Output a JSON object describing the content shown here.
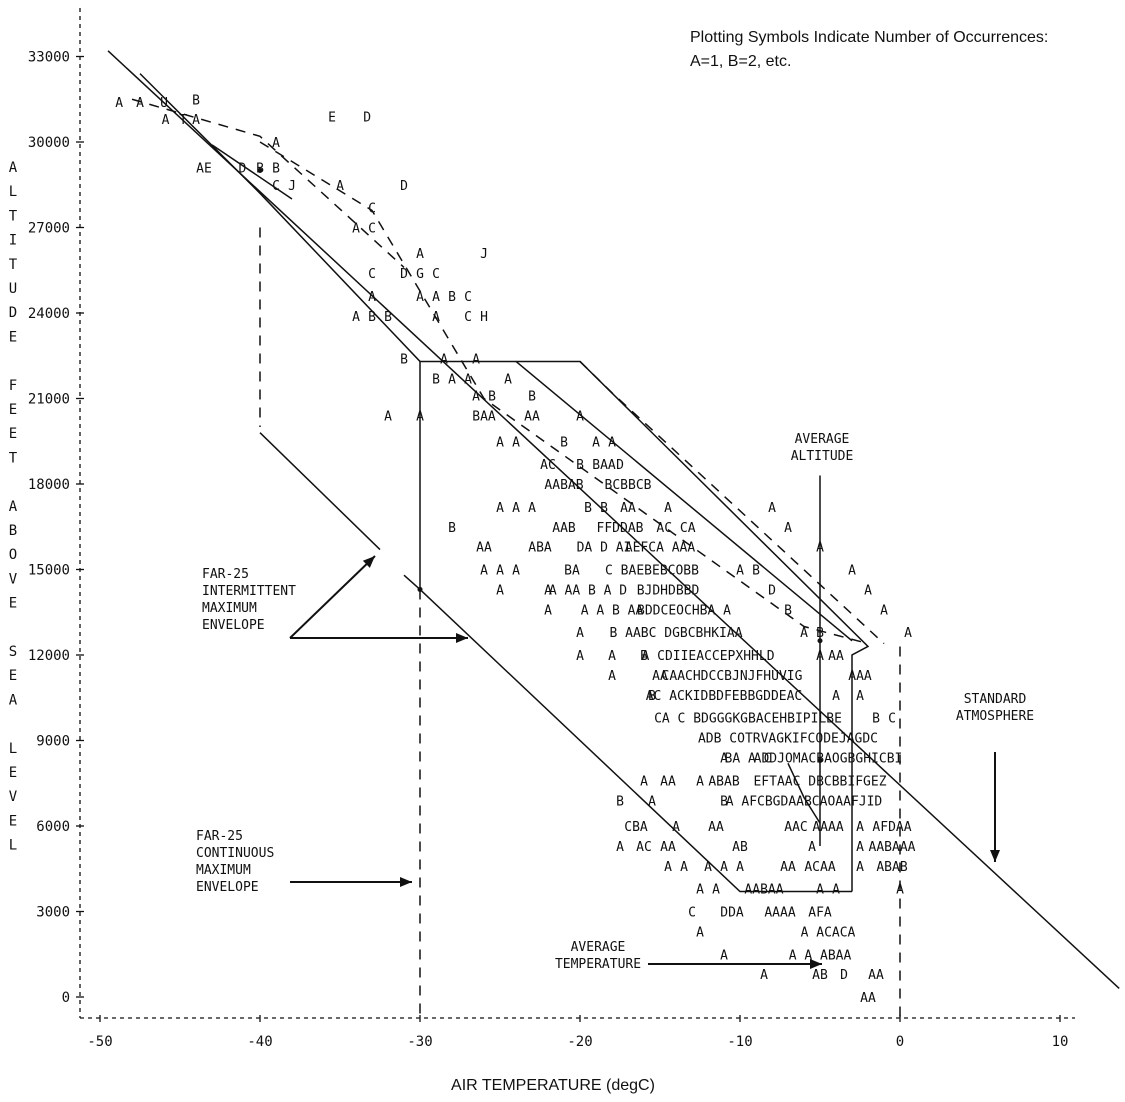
{
  "chart_data": {
    "type": "scatter",
    "title": "",
    "legend_note": [
      "Plotting Symbols Indicate Number of Occurrences:",
      "A=1, B=2, etc."
    ],
    "xlabel": "AIR TEMPERATURE (degC)",
    "ylabel_letters": [
      "A",
      "L",
      "T",
      "I",
      "T",
      "U",
      "D",
      "E",
      "",
      "F",
      "E",
      "E",
      "T",
      "",
      "A",
      "B",
      "O",
      "V",
      "E",
      "",
      "S",
      "E",
      "A",
      "",
      "L",
      "E",
      "V",
      "E",
      "L"
    ],
    "xlim": [
      -50,
      12
    ],
    "ylim": [
      -500,
      34000
    ],
    "x_ticks": [
      -50,
      -40,
      -30,
      -20,
      -10,
      0,
      10
    ],
    "x_tick_labels": [
      "-50",
      "-40",
      "-30",
      "-20",
      "-10",
      "0",
      "10"
    ],
    "y_ticks": [
      0,
      3000,
      6000,
      9000,
      12000,
      15000,
      18000,
      21000,
      24000,
      27000,
      30000,
      33000
    ],
    "y_tick_labels": [
      "0",
      "3000",
      "6000",
      "9000",
      "12000",
      "15000",
      "18000",
      "21000",
      "24000",
      "27000",
      "30000",
      "33000"
    ],
    "grid": false,
    "points": [
      {
        "x": -48.8,
        "y": 31400,
        "s": "A"
      },
      {
        "x": -47.5,
        "y": 31400,
        "s": "A"
      },
      {
        "x": -46.0,
        "y": 31400,
        "s": "U"
      },
      {
        "x": -44.0,
        "y": 31500,
        "s": "B"
      },
      {
        "x": -45.9,
        "y": 30800,
        "s": "A"
      },
      {
        "x": -44.8,
        "y": 30800,
        "s": "T"
      },
      {
        "x": -44.0,
        "y": 30800,
        "s": "A"
      },
      {
        "x": -35.5,
        "y": 30900,
        "s": "E"
      },
      {
        "x": -33.3,
        "y": 30900,
        "s": "D"
      },
      {
        "x": -39.0,
        "y": 30000,
        "s": "A"
      },
      {
        "x": -43.5,
        "y": 29100,
        "s": "AE"
      },
      {
        "x": -41.1,
        "y": 29100,
        "s": "D"
      },
      {
        "x": -40.0,
        "y": 29100,
        "s": "B"
      },
      {
        "x": -39.0,
        "y": 29100,
        "s": "B"
      },
      {
        "x": -39.0,
        "y": 28500,
        "s": "C"
      },
      {
        "x": -38.0,
        "y": 28500,
        "s": "J"
      },
      {
        "x": -35.0,
        "y": 28500,
        "s": "A"
      },
      {
        "x": -31.0,
        "y": 28500,
        "s": "D"
      },
      {
        "x": -33.0,
        "y": 27700,
        "s": "C"
      },
      {
        "x": -34.0,
        "y": 27000,
        "s": "A"
      },
      {
        "x": -33.0,
        "y": 27000,
        "s": "C"
      },
      {
        "x": -30.0,
        "y": 26100,
        "s": "A"
      },
      {
        "x": -26.0,
        "y": 26100,
        "s": "J"
      },
      {
        "x": -33.0,
        "y": 25400,
        "s": "C"
      },
      {
        "x": -31.0,
        "y": 25400,
        "s": "D"
      },
      {
        "x": -30.0,
        "y": 25400,
        "s": "G"
      },
      {
        "x": -29.0,
        "y": 25400,
        "s": "C"
      },
      {
        "x": -33.0,
        "y": 24600,
        "s": "A"
      },
      {
        "x": -30.0,
        "y": 24600,
        "s": "A"
      },
      {
        "x": -29.0,
        "y": 24600,
        "s": "A"
      },
      {
        "x": -28.0,
        "y": 24600,
        "s": "B"
      },
      {
        "x": -27.0,
        "y": 24600,
        "s": "C"
      },
      {
        "x": -34.0,
        "y": 23900,
        "s": "A"
      },
      {
        "x": -33.0,
        "y": 23900,
        "s": "B"
      },
      {
        "x": -32.0,
        "y": 23900,
        "s": "B"
      },
      {
        "x": -29.0,
        "y": 23900,
        "s": "A"
      },
      {
        "x": -27.0,
        "y": 23900,
        "s": "C"
      },
      {
        "x": -26.0,
        "y": 23900,
        "s": "H"
      },
      {
        "x": -31.0,
        "y": 22400,
        "s": "B"
      },
      {
        "x": -28.5,
        "y": 22400,
        "s": "A"
      },
      {
        "x": -26.5,
        "y": 22400,
        "s": "A"
      },
      {
        "x": -29.0,
        "y": 21700,
        "s": "B"
      },
      {
        "x": -28.0,
        "y": 21700,
        "s": "A"
      },
      {
        "x": -27.0,
        "y": 21700,
        "s": "A"
      },
      {
        "x": -24.5,
        "y": 21700,
        "s": "A"
      },
      {
        "x": -26.5,
        "y": 21100,
        "s": "A"
      },
      {
        "x": -25.5,
        "y": 21100,
        "s": "B"
      },
      {
        "x": -23.0,
        "y": 21100,
        "s": "B"
      },
      {
        "x": -32.0,
        "y": 20400,
        "s": "A"
      },
      {
        "x": -30.0,
        "y": 20400,
        "s": "A"
      },
      {
        "x": -26.0,
        "y": 20400,
        "s": "BAA"
      },
      {
        "x": -23.0,
        "y": 20400,
        "s": "AA"
      },
      {
        "x": -20.0,
        "y": 20400,
        "s": "A"
      },
      {
        "x": -25.0,
        "y": 19500,
        "s": "A"
      },
      {
        "x": -24.0,
        "y": 19500,
        "s": "A"
      },
      {
        "x": -21.0,
        "y": 19500,
        "s": "B"
      },
      {
        "x": -19.0,
        "y": 19500,
        "s": "A"
      },
      {
        "x": -18.0,
        "y": 19500,
        "s": "A"
      },
      {
        "x": -22.0,
        "y": 18700,
        "s": "AC"
      },
      {
        "x": -20.0,
        "y": 18700,
        "s": "B"
      },
      {
        "x": -18.5,
        "y": 18700,
        "s": "BAA"
      },
      {
        "x": -17.5,
        "y": 18700,
        "s": "D"
      },
      {
        "x": -21.0,
        "y": 18000,
        "s": "AABAB"
      },
      {
        "x": -17.0,
        "y": 18000,
        "s": "BCBBCB"
      },
      {
        "x": -25.0,
        "y": 17200,
        "s": "A"
      },
      {
        "x": -24.0,
        "y": 17200,
        "s": "A"
      },
      {
        "x": -23.0,
        "y": 17200,
        "s": "A"
      },
      {
        "x": -19.5,
        "y": 17200,
        "s": "B"
      },
      {
        "x": -18.5,
        "y": 17200,
        "s": "B"
      },
      {
        "x": -17.0,
        "y": 17200,
        "s": "AA"
      },
      {
        "x": -14.5,
        "y": 17200,
        "s": "A"
      },
      {
        "x": -8.0,
        "y": 17200,
        "s": "A"
      },
      {
        "x": -28.0,
        "y": 16500,
        "s": "B"
      },
      {
        "x": -21.0,
        "y": 16500,
        "s": "AAB"
      },
      {
        "x": -17.5,
        "y": 16500,
        "s": "FFDDAB"
      },
      {
        "x": -14.0,
        "y": 16500,
        "s": "AC CA"
      },
      {
        "x": -7.0,
        "y": 16500,
        "s": "A"
      },
      {
        "x": -26.0,
        "y": 15800,
        "s": "AA"
      },
      {
        "x": -22.5,
        "y": 15800,
        "s": "ABA"
      },
      {
        "x": -18.5,
        "y": 15800,
        "s": "DA D AI"
      },
      {
        "x": -15.0,
        "y": 15800,
        "s": "AEFCA AAA"
      },
      {
        "x": -5.0,
        "y": 15800,
        "s": "A"
      },
      {
        "x": -26.0,
        "y": 15000,
        "s": "A"
      },
      {
        "x": -25.0,
        "y": 15000,
        "s": "A"
      },
      {
        "x": -24.0,
        "y": 15000,
        "s": "A"
      },
      {
        "x": -20.5,
        "y": 15000,
        "s": "BA"
      },
      {
        "x": -15.5,
        "y": 15000,
        "s": "C BAEBEBCOBB"
      },
      {
        "x": -10.0,
        "y": 15000,
        "s": "A"
      },
      {
        "x": -9.0,
        "y": 15000,
        "s": "B"
      },
      {
        "x": -3.0,
        "y": 15000,
        "s": "A"
      },
      {
        "x": -25.0,
        "y": 14300,
        "s": "A"
      },
      {
        "x": -22.0,
        "y": 14300,
        "s": "A"
      },
      {
        "x": -19.5,
        "y": 14300,
        "s": "A AA B A D"
      },
      {
        "x": -14.5,
        "y": 14300,
        "s": "BJDHDBBD"
      },
      {
        "x": -8.0,
        "y": 14300,
        "s": "D"
      },
      {
        "x": -2.0,
        "y": 14300,
        "s": "A"
      },
      {
        "x": -22.0,
        "y": 13600,
        "s": "A"
      },
      {
        "x": -18.0,
        "y": 13600,
        "s": "A A B AA"
      },
      {
        "x": -13.5,
        "y": 13600,
        "s": "BDDCEOCHBA A"
      },
      {
        "x": -7.0,
        "y": 13600,
        "s": "B"
      },
      {
        "x": -1.0,
        "y": 13600,
        "s": "A"
      },
      {
        "x": -20.0,
        "y": 12800,
        "s": "A"
      },
      {
        "x": -14.0,
        "y": 12800,
        "s": "B AABC DGBCBHKIAA"
      },
      {
        "x": -6.0,
        "y": 12800,
        "s": "A"
      },
      {
        "x": -5.0,
        "y": 12800,
        "s": "B"
      },
      {
        "x": 0.5,
        "y": 12800,
        "s": "A"
      },
      {
        "x": -20.0,
        "y": 12000,
        "s": "A"
      },
      {
        "x": -18.0,
        "y": 12000,
        "s": "A"
      },
      {
        "x": -16.0,
        "y": 12000,
        "s": "B"
      },
      {
        "x": -12.0,
        "y": 12000,
        "s": "A CDIIEACCEPXHHLD"
      },
      {
        "x": -5.0,
        "y": 12000,
        "s": "A"
      },
      {
        "x": -4.0,
        "y": 12000,
        "s": "AA"
      },
      {
        "x": -18.0,
        "y": 11300,
        "s": "A"
      },
      {
        "x": -15.0,
        "y": 11300,
        "s": "AA"
      },
      {
        "x": -10.5,
        "y": 11300,
        "s": "CAACHDCCBJNJFHUVIG"
      },
      {
        "x": -2.5,
        "y": 11300,
        "s": "AAA"
      },
      {
        "x": -15.5,
        "y": 10600,
        "s": "B"
      },
      {
        "x": -11.0,
        "y": 10600,
        "s": "AC ACKIDBDFEBBGDDEAC"
      },
      {
        "x": -4.0,
        "y": 10600,
        "s": "A"
      },
      {
        "x": -2.5,
        "y": 10600,
        "s": "A"
      },
      {
        "x": -9.5,
        "y": 9800,
        "s": "CA C BDGGGKGBACEHBIPILBE"
      },
      {
        "x": -1.5,
        "y": 9800,
        "s": "B"
      },
      {
        "x": -0.5,
        "y": 9800,
        "s": "C"
      },
      {
        "x": -7.0,
        "y": 9100,
        "s": "ADB COTRVAGKIFCODEJAGDC"
      },
      {
        "x": -11.0,
        "y": 8400,
        "s": "A"
      },
      {
        "x": -9.5,
        "y": 8400,
        "s": "BA A C"
      },
      {
        "x": -4.5,
        "y": 8400,
        "s": "ADDJOMACBAOGBGHICBI"
      },
      {
        "x": -16.0,
        "y": 7600,
        "s": "A"
      },
      {
        "x": -14.5,
        "y": 7600,
        "s": "AA"
      },
      {
        "x": -12.5,
        "y": 7600,
        "s": "A"
      },
      {
        "x": -11.0,
        "y": 7600,
        "s": "ABAB"
      },
      {
        "x": -5.0,
        "y": 7600,
        "s": "EFTAAC DBCBBIFGEZ"
      },
      {
        "x": -17.5,
        "y": 6900,
        "s": "B"
      },
      {
        "x": -15.5,
        "y": 6900,
        "s": "A"
      },
      {
        "x": -11.0,
        "y": 6900,
        "s": "B"
      },
      {
        "x": -6.0,
        "y": 6900,
        "s": "A AFCBGDAABCAOAAFJID"
      },
      {
        "x": -16.5,
        "y": 6000,
        "s": "CBA"
      },
      {
        "x": -14.0,
        "y": 6000,
        "s": "A"
      },
      {
        "x": -11.5,
        "y": 6000,
        "s": "AA"
      },
      {
        "x": -6.5,
        "y": 6000,
        "s": "AAC"
      },
      {
        "x": -4.5,
        "y": 6000,
        "s": "AAAA"
      },
      {
        "x": -2.5,
        "y": 6000,
        "s": "A"
      },
      {
        "x": -0.5,
        "y": 6000,
        "s": "AFDAA"
      },
      {
        "x": -17.5,
        "y": 5300,
        "s": "A"
      },
      {
        "x": -16.0,
        "y": 5300,
        "s": "AC"
      },
      {
        "x": -14.5,
        "y": 5300,
        "s": "AA"
      },
      {
        "x": -10.0,
        "y": 5300,
        "s": "AB"
      },
      {
        "x": -5.5,
        "y": 5300,
        "s": "A"
      },
      {
        "x": -2.5,
        "y": 5300,
        "s": "A"
      },
      {
        "x": -0.5,
        "y": 5300,
        "s": "AABAAA"
      },
      {
        "x": -14.5,
        "y": 4600,
        "s": "A"
      },
      {
        "x": -13.5,
        "y": 4600,
        "s": "A"
      },
      {
        "x": -12.0,
        "y": 4600,
        "s": "A"
      },
      {
        "x": -11.0,
        "y": 4600,
        "s": "A"
      },
      {
        "x": -10.0,
        "y": 4600,
        "s": "A"
      },
      {
        "x": -7.0,
        "y": 4600,
        "s": "AA"
      },
      {
        "x": -5.0,
        "y": 4600,
        "s": "ACAA"
      },
      {
        "x": -2.5,
        "y": 4600,
        "s": "A"
      },
      {
        "x": -0.5,
        "y": 4600,
        "s": "ABAB"
      },
      {
        "x": -12.5,
        "y": 3800,
        "s": "A"
      },
      {
        "x": -11.5,
        "y": 3800,
        "s": "A"
      },
      {
        "x": -8.5,
        "y": 3800,
        "s": "AABAA"
      },
      {
        "x": -5.0,
        "y": 3800,
        "s": "A"
      },
      {
        "x": -4.0,
        "y": 3800,
        "s": "A"
      },
      {
        "x": 0.0,
        "y": 3800,
        "s": "A"
      },
      {
        "x": -13.0,
        "y": 3000,
        "s": "C"
      },
      {
        "x": -10.5,
        "y": 3000,
        "s": "DDA"
      },
      {
        "x": -7.5,
        "y": 3000,
        "s": "AAAA"
      },
      {
        "x": -5.0,
        "y": 3000,
        "s": "AFA"
      },
      {
        "x": -12.5,
        "y": 2300,
        "s": "A"
      },
      {
        "x": -4.5,
        "y": 2300,
        "s": "A ACACA"
      },
      {
        "x": -11.0,
        "y": 1500,
        "s": "A"
      },
      {
        "x": -5.0,
        "y": 1500,
        "s": "A A ABAA"
      },
      {
        "x": -8.5,
        "y": 800,
        "s": "A"
      },
      {
        "x": -5.0,
        "y": 800,
        "s": "AB"
      },
      {
        "x": -3.5,
        "y": 800,
        "s": "D"
      },
      {
        "x": -1.5,
        "y": 800,
        "s": "AA"
      },
      {
        "x": -2.0,
        "y": 0,
        "s": "AA"
      }
    ],
    "standard_atmosphere": {
      "x": [
        -49.5,
        13.7
      ],
      "y": [
        33200,
        300
      ]
    },
    "intermittent_envelope": {
      "x": [
        -40,
        -40,
        -30,
        -29,
        -10,
        -3,
        -3,
        -5,
        -5,
        -3
      ],
      "y": [
        30200,
        28000,
        14300,
        22300,
        3700,
        3700,
        12000,
        12500,
        8000,
        7900
      ]
    },
    "continuous_envelope_dash": {
      "x": [
        -40,
        -20,
        -30,
        -30
      ],
      "y": [
        30200,
        22300,
        22300,
        0
      ]
    },
    "annotations": {
      "average_altitude": "AVERAGE ALTITUDE",
      "average_temperature": "AVERAGE TEMPERATURE",
      "standard_atmosphere": "STANDARD ATMOSPHERE",
      "far25_intermittent": "FAR-25 INTERMITTENT MAXIMUM ENVELOPE",
      "far25_continuous": "FAR-25 CONTINUOUS MAXIMUM ENVELOPE"
    }
  }
}
